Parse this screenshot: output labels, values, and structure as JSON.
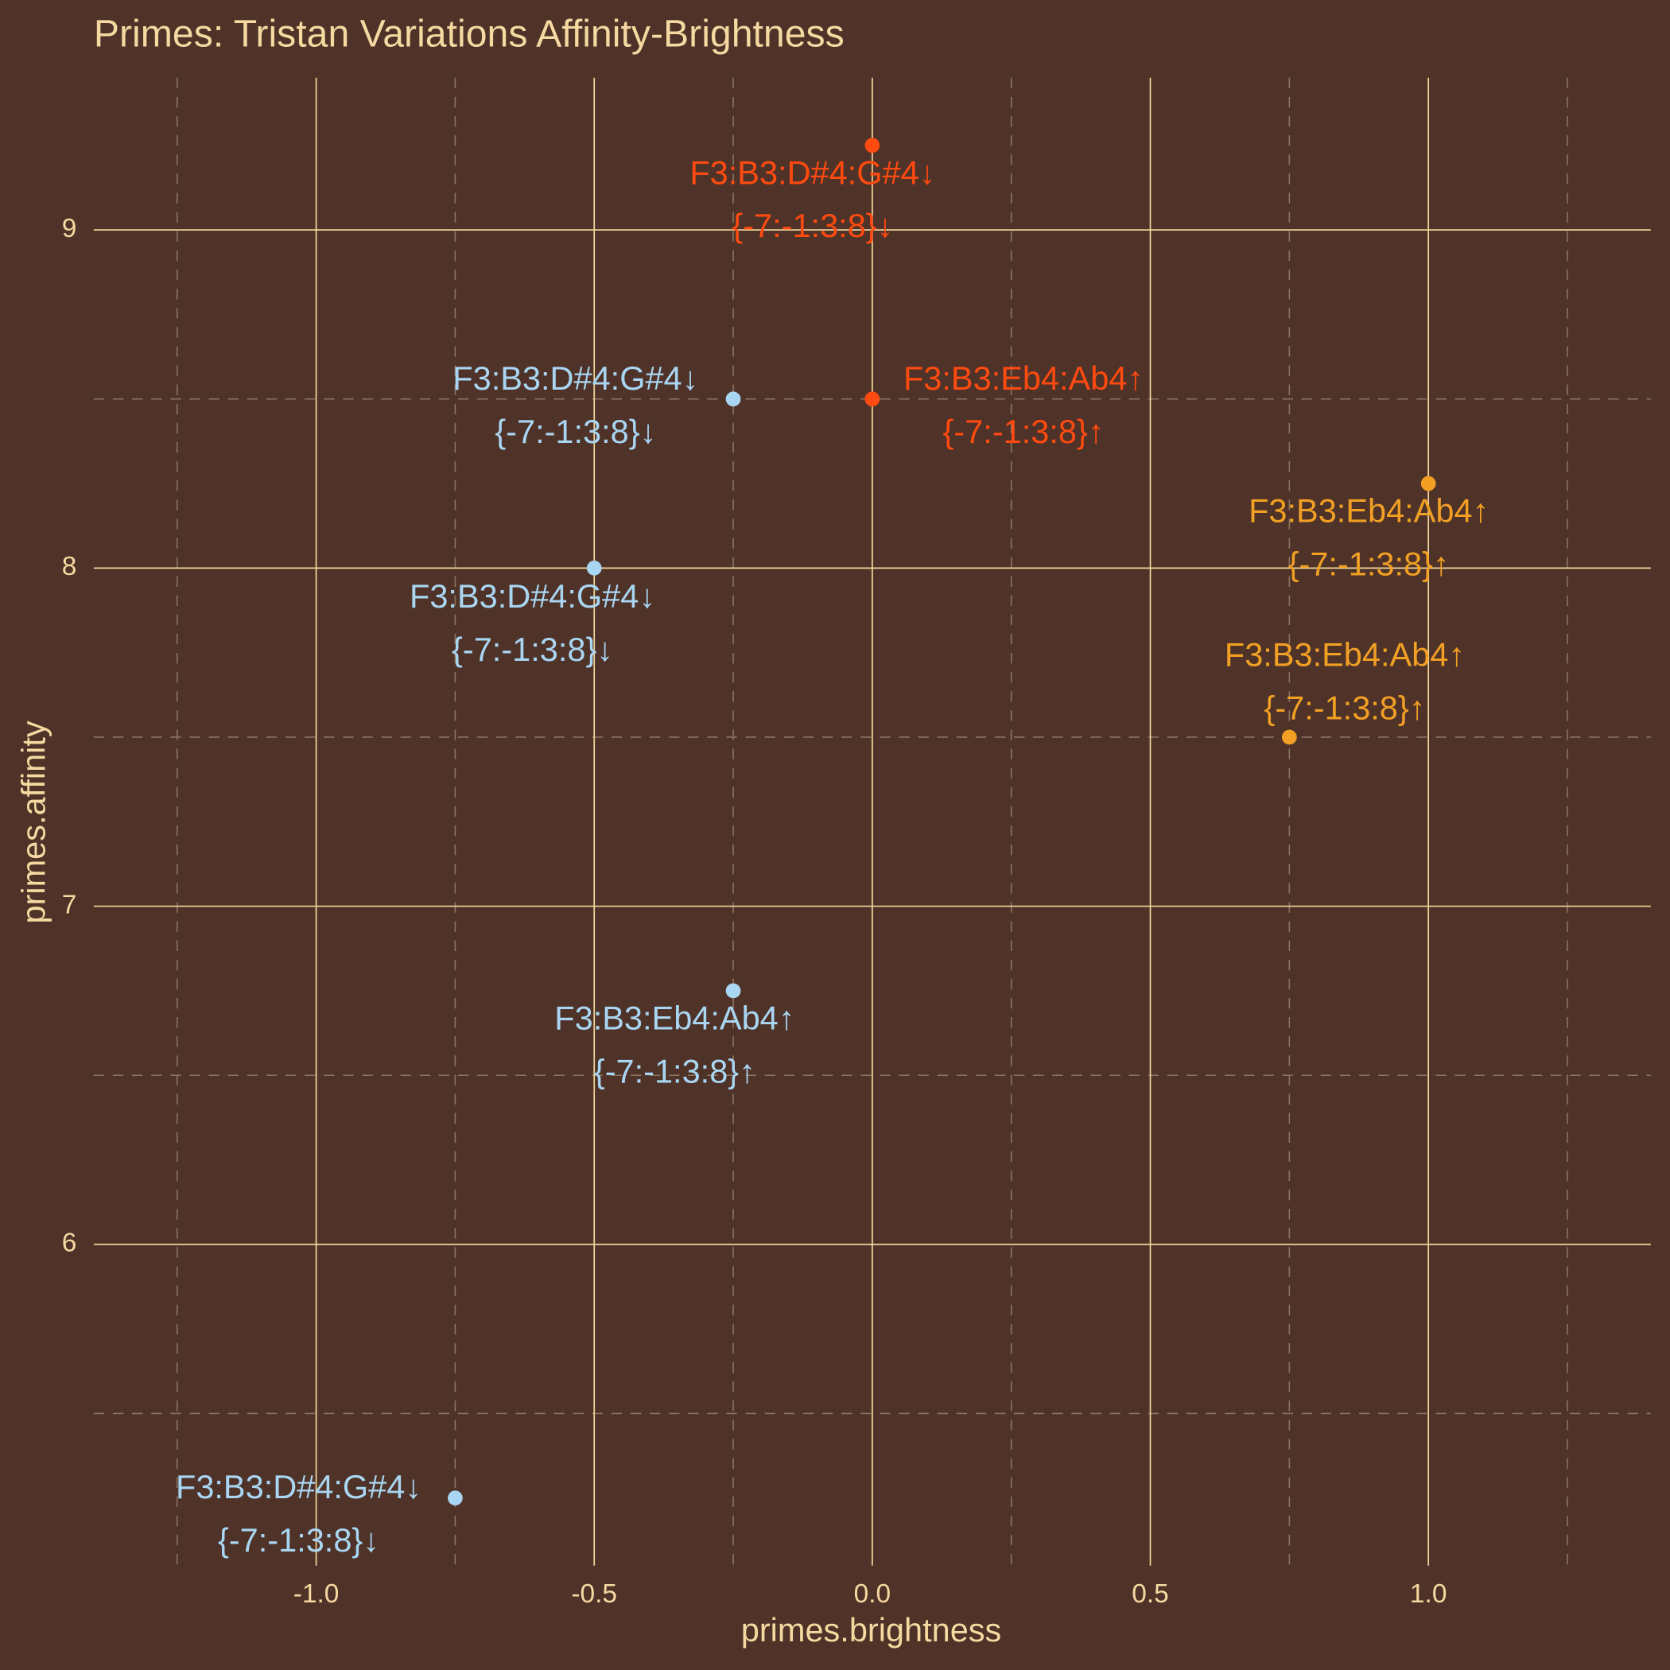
{
  "chart_data": {
    "type": "scatter",
    "title": "Primes: Tristan Variations Affinity-Brightness",
    "x_label": "primes.brightness",
    "y_label": "primes.affinity",
    "xlim": [
      -1.4,
      1.4
    ],
    "ylim": [
      5.05,
      9.45
    ],
    "xticks": [
      {
        "value": -1,
        "label": "-1.0"
      },
      -0.5,
      {
        "value": 0,
        "label": "0.0"
      },
      0.5,
      {
        "value": 1,
        "label": "1.0"
      }
    ],
    "yticks": [
      6,
      7,
      8,
      9
    ],
    "x_minor_ticks": [
      -1.25,
      -0.75,
      -0.25,
      0.25,
      0.75,
      1.25
    ],
    "y_minor_ticks": [
      5.5,
      6.5,
      7.5,
      8.5
    ],
    "grid": true,
    "series": [
      {
        "color": "#a9d6f2",
        "x": [
          -0.25,
          -0.5,
          -0.25,
          -0.75
        ],
        "values": [
          8.5,
          8.0,
          6.75,
          5.25
        ],
        "labels": [
          [
            "F3:B3:D#4:G#4↓",
            "{-7:-1:3:8}↓"
          ],
          [
            "F3:B3:D#4:G#4↓",
            "{-7:-1:3:8}↓"
          ],
          [
            "F3:B3:Eb4:Ab4↑",
            "{-7:-1:3:8}↑"
          ],
          [
            "F3:B3:D#4:G#4↓",
            "{-7:-1:3:8}↓"
          ]
        ]
      },
      {
        "color": "#ff4a10",
        "x": [
          0,
          0
        ],
        "values": [
          9.25,
          8.5
        ],
        "labels": [
          [
            "F3:B3:D#4:G#4↓",
            "{-7:-1:3:8}↓"
          ],
          [
            "F3:B3:Eb4:Ab4↑",
            "{-7:-1:3:8}↑"
          ]
        ]
      },
      {
        "color": "#f2a024",
        "x": [
          1.0,
          0.75
        ],
        "values": [
          8.25,
          7.5
        ],
        "labels": [
          [
            "F3:B3:Eb4:Ab4↑",
            "{-7:-1:3:8}↑"
          ],
          [
            "F3:B3:Eb4:Ab4↑",
            "{-7:-1:3:8}↑"
          ]
        ]
      }
    ]
  }
}
